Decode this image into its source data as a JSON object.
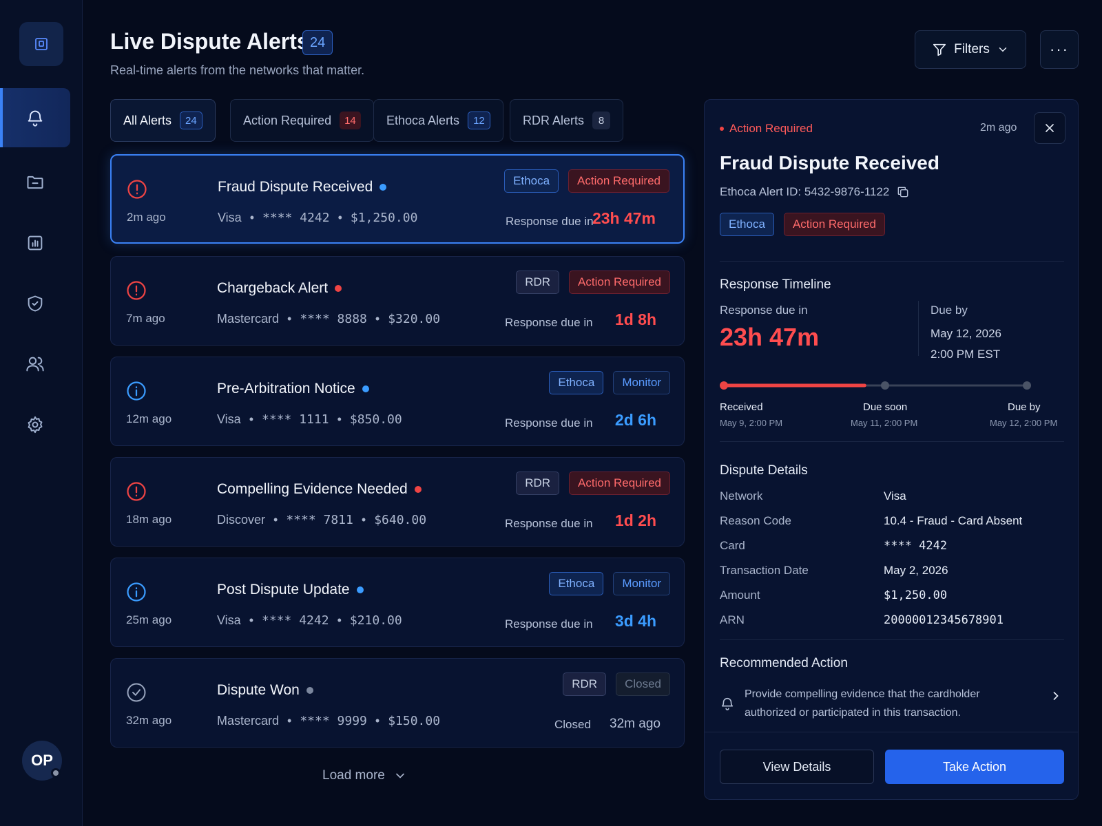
{
  "header": {
    "title": "Live Dispute Alerts",
    "count": "24",
    "subtitle": "Real-time alerts from the networks that matter.",
    "filters_label": "Filters",
    "more_label": "···"
  },
  "tabs": [
    {
      "label": "All Alerts",
      "count": "24"
    },
    {
      "label": "Action Required",
      "count": "14"
    },
    {
      "label": "Ethoca Alerts",
      "count": "12"
    },
    {
      "label": "RDR Alerts",
      "count": "8"
    }
  ],
  "alerts": [
    {
      "title": "Fraud Dispute Received",
      "age": "2m ago",
      "network": "Visa",
      "card": "**** 4242",
      "amount": "$1,250.00",
      "tag1": "Ethoca",
      "tag2": "Action Required",
      "due_label": "Response due in",
      "due": "23h 47m"
    },
    {
      "title": "Chargeback Alert",
      "age": "7m ago",
      "network": "Mastercard",
      "card": "**** 8888",
      "amount": "$320.00",
      "tag1": "RDR",
      "tag2": "Action Required",
      "due_label": "Response due in",
      "due": "1d 8h"
    },
    {
      "title": "Pre-Arbitration Notice",
      "age": "12m ago",
      "network": "Visa",
      "card": "**** 1111",
      "amount": "$850.00",
      "tag1": "Ethoca",
      "tag2": "Monitor",
      "due_label": "Response due in",
      "due": "2d 6h"
    },
    {
      "title": "Compelling Evidence Needed",
      "age": "18m ago",
      "network": "Discover",
      "card": "**** 7811",
      "amount": "$640.00",
      "tag1": "RDR",
      "tag2": "Action Required",
      "due_label": "Response due in",
      "due": "1d 2h"
    },
    {
      "title": "Post Dispute Update",
      "age": "25m ago",
      "network": "Visa",
      "card": "**** 4242",
      "amount": "$210.00",
      "tag1": "Ethoca",
      "tag2": "Monitor",
      "due_label": "Response due in",
      "due": "3d 4h"
    },
    {
      "title": "Dispute Won",
      "age": "32m ago",
      "network": "Mastercard",
      "card": "**** 9999",
      "amount": "$150.00",
      "tag1": "RDR",
      "tag2": "Closed",
      "due_label": "Closed",
      "due": "32m ago"
    }
  ],
  "load_more": "Load more",
  "sidebar": {
    "avatar_initials": "OP",
    "icons": [
      "bell-icon",
      "folder-icon",
      "chart-icon",
      "shield-check-icon",
      "users-icon",
      "gear-icon"
    ]
  },
  "detail": {
    "status": "Action Required",
    "time": "2m ago",
    "title": "Fraud Dispute Received",
    "alert_id": "Ethoca Alert ID: 5432-9876-1122",
    "tag1": "Ethoca",
    "tag2": "Action Required",
    "timeline_title": "Response Timeline",
    "due_label": "Response due in",
    "due_value": "23h 47m",
    "due_by_label": "Due by",
    "due_by_date": "May 12, 2026",
    "due_by_time": "2:00 PM EST",
    "timeline_progress": 0.47,
    "milestones": [
      {
        "label": "Received",
        "date": "May 9, 2:00 PM"
      },
      {
        "label": "Due soon",
        "date": "May 11, 2:00 PM"
      },
      {
        "label": "Due by",
        "date": "May 12, 2:00 PM"
      }
    ],
    "details_title": "Dispute Details",
    "details": [
      {
        "key": "Network",
        "value": "Visa"
      },
      {
        "key": "Reason Code",
        "value": "10.4 - Fraud - Card Absent"
      },
      {
        "key": "Card",
        "value": "**** 4242"
      },
      {
        "key": "Transaction Date",
        "value": "May 2, 2026"
      },
      {
        "key": "Amount",
        "value": "$1,250.00"
      },
      {
        "key": "ARN",
        "value": "20000012345678901"
      }
    ],
    "recommended_title": "Recommended Action",
    "recommended_text": "Provide compelling evidence that the cardholder authorized or participated in this transaction.",
    "view_details_label": "View Details",
    "take_action_label": "Take Action"
  },
  "colors": {
    "accent": "#3b82f6",
    "danger": "#ff4d4f",
    "info": "#3b9cff",
    "background": "#050b1c"
  }
}
